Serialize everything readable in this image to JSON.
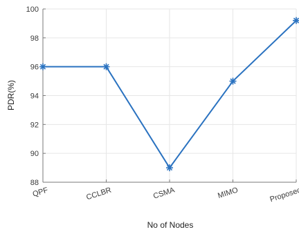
{
  "chart_data": {
    "type": "line",
    "title": "",
    "xlabel": "No of Nodes",
    "ylabel": "PDR(%)",
    "categories": [
      "QPF",
      "CCLBR",
      "CSMA",
      "MIMO",
      "Proposed"
    ],
    "series": [
      {
        "values": [
          96,
          96,
          89,
          95,
          99.2
        ]
      }
    ],
    "ylim": [
      88,
      100
    ],
    "yticks": [
      88,
      90,
      92,
      94,
      96,
      98,
      100
    ],
    "grid": true,
    "marker": "asterisk",
    "series_color": "#2a72c0",
    "grid_color": "#e6e6e6",
    "axis_color": "#7a7a7a"
  }
}
